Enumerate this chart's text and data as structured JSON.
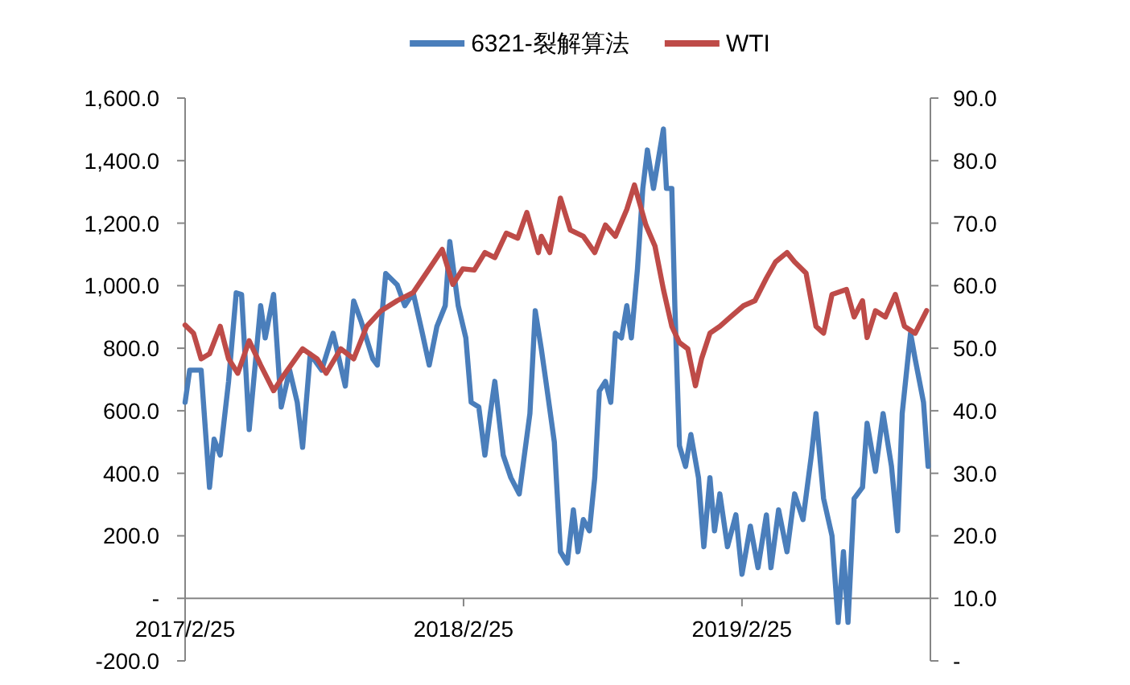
{
  "chart_data": {
    "type": "line",
    "legend": "top",
    "grid": false,
    "marker": "none",
    "line_style": "solid",
    "xlim": [
      "2017-02-25",
      "2019-10-30"
    ],
    "xticks": [
      {
        "value": "2017-02-25",
        "label": "2017/2/25"
      },
      {
        "value": "2018-02-25",
        "label": "2018/2/25"
      },
      {
        "value": "2019-02-25",
        "label": "2019/2/25"
      }
    ],
    "ylim": [
      -200,
      1600
    ],
    "yticks": [
      {
        "value": -200,
        "label": "-200.0"
      },
      {
        "value": 0,
        "label": "-"
      },
      {
        "value": 200,
        "label": "200.0"
      },
      {
        "value": 400,
        "label": "400.0"
      },
      {
        "value": 600,
        "label": "600.0"
      },
      {
        "value": 800,
        "label": "800.0"
      },
      {
        "value": 1000,
        "label": "1,000.0"
      },
      {
        "value": 1200,
        "label": "1,200.0"
      },
      {
        "value": 1400,
        "label": "1,400.0"
      },
      {
        "value": 1600,
        "label": "1,600.0"
      }
    ],
    "y2lim": [
      0,
      90
    ],
    "y2ticks": [
      {
        "value": 0,
        "label": "-"
      },
      {
        "value": 10,
        "label": "10.0"
      },
      {
        "value": 20,
        "label": "20.0"
      },
      {
        "value": 30,
        "label": "30.0"
      },
      {
        "value": 40,
        "label": "40.0"
      },
      {
        "value": 50,
        "label": "50.0"
      },
      {
        "value": 60,
        "label": "60.0"
      },
      {
        "value": 70,
        "label": "70.0"
      },
      {
        "value": 80,
        "label": "80.0"
      },
      {
        "value": 90,
        "label": "90.0"
      }
    ],
    "series": [
      {
        "name": "6321-裂解算法",
        "color": "#4a7ebb",
        "x": [
          "2017-02-25",
          "2017-03-03",
          "2017-03-18",
          "2017-03-29",
          "2017-04-04",
          "2017-04-12",
          "2017-04-23",
          "2017-05-03",
          "2017-05-10",
          "2017-05-20",
          "2017-06-04",
          "2017-06-10",
          "2017-06-21",
          "2017-07-01",
          "2017-07-12",
          "2017-07-22",
          "2017-07-29",
          "2017-08-08",
          "2017-08-23",
          "2017-09-07",
          "2017-09-23",
          "2017-10-04",
          "2017-10-14",
          "2017-10-29",
          "2017-11-04",
          "2017-11-15",
          "2017-11-30",
          "2017-12-10",
          "2017-12-21",
          "2018-01-02",
          "2018-01-11",
          "2018-01-21",
          "2018-02-01",
          "2018-02-07",
          "2018-02-18",
          "2018-02-28",
          "2018-03-07",
          "2018-03-17",
          "2018-03-25",
          "2018-04-01",
          "2018-04-07",
          "2018-04-18",
          "2018-04-28",
          "2018-05-09",
          "2018-05-23",
          "2018-05-30",
          "2018-06-07",
          "2018-06-13",
          "2018-06-24",
          "2018-07-02",
          "2018-07-11",
          "2018-07-19",
          "2018-07-25",
          "2018-08-01",
          "2018-08-09",
          "2018-08-16",
          "2018-08-22",
          "2018-08-30",
          "2018-09-06",
          "2018-09-12",
          "2018-09-20",
          "2018-09-27",
          "2018-10-03",
          "2018-10-11",
          "2018-10-18",
          "2018-10-24",
          "2018-11-01",
          "2018-11-08",
          "2018-11-14",
          "2018-11-18",
          "2018-11-25",
          "2018-11-29",
          "2018-12-05",
          "2018-12-13",
          "2018-12-20",
          "2018-12-30",
          "2019-01-06",
          "2019-01-14",
          "2019-01-20",
          "2019-01-27",
          "2019-02-06",
          "2019-02-17",
          "2019-02-25",
          "2019-03-08",
          "2019-03-18",
          "2019-03-29",
          "2019-04-04",
          "2019-04-14",
          "2019-04-25",
          "2019-05-05",
          "2019-05-16",
          "2019-05-27",
          "2019-06-02",
          "2019-06-12",
          "2019-06-23",
          "2019-07-01",
          "2019-07-08",
          "2019-07-14",
          "2019-07-22",
          "2019-08-02",
          "2019-08-08",
          "2019-08-19",
          "2019-08-29",
          "2019-09-09",
          "2019-09-17",
          "2019-09-23",
          "2019-10-04",
          "2019-10-10",
          "2019-10-21",
          "2019-10-27"
        ],
        "values": [
          627,
          730,
          730,
          355,
          509,
          458,
          694,
          977,
          972,
          540,
          936,
          833,
          972,
          612,
          730,
          627,
          483,
          781,
          730,
          848,
          679,
          951,
          884,
          766,
          746,
          1039,
          1003,
          936,
          977,
          848,
          746,
          869,
          936,
          1141,
          936,
          833,
          627,
          612,
          458,
          591,
          694,
          458,
          386,
          334,
          591,
          920,
          797,
          694,
          500,
          149,
          113,
          283,
          149,
          252,
          216,
          386,
          663,
          694,
          627,
          848,
          833,
          936,
          833,
          1054,
          1311,
          1434,
          1311,
          1414,
          1501,
          1311,
          1311,
          936,
          488,
          422,
          524,
          386,
          165,
          386,
          216,
          334,
          165,
          267,
          77,
          231,
          98,
          267,
          98,
          283,
          149,
          334,
          252,
          458,
          591,
          319,
          200,
          -77,
          149,
          -77,
          319,
          355,
          560,
          406,
          591,
          422,
          216,
          591,
          848,
          766,
          627,
          422
        ]
      },
      {
        "name": "WTI",
        "color": "#be4b48",
        "axis": "y2",
        "x": [
          "2017-02-25",
          "2017-03-08",
          "2017-03-18",
          "2017-03-29",
          "2017-04-12",
          "2017-04-23",
          "2017-05-05",
          "2017-05-20",
          "2017-06-04",
          "2017-06-21",
          "2017-07-05",
          "2017-07-29",
          "2017-08-17",
          "2017-08-29",
          "2017-09-17",
          "2017-10-04",
          "2017-10-21",
          "2017-11-09",
          "2017-11-30",
          "2017-12-21",
          "2018-01-11",
          "2018-01-28",
          "2018-02-11",
          "2018-02-24",
          "2018-03-11",
          "2018-03-25",
          "2018-04-07",
          "2018-04-22",
          "2018-05-07",
          "2018-05-19",
          "2018-06-03",
          "2018-06-07",
          "2018-06-18",
          "2018-07-02",
          "2018-07-15",
          "2018-08-01",
          "2018-08-16",
          "2018-08-30",
          "2018-09-12",
          "2018-09-27",
          "2018-10-07",
          "2018-10-22",
          "2018-11-03",
          "2018-11-14",
          "2018-11-25",
          "2018-12-05",
          "2018-12-16",
          "2018-12-26",
          "2019-01-03",
          "2019-01-14",
          "2019-01-27",
          "2019-02-10",
          "2019-02-27",
          "2019-03-14",
          "2019-03-29",
          "2019-04-10",
          "2019-04-25",
          "2019-05-05",
          "2019-05-20",
          "2019-06-02",
          "2019-06-12",
          "2019-06-23",
          "2019-07-12",
          "2019-07-22",
          "2019-08-02",
          "2019-08-08",
          "2019-08-19",
          "2019-09-01",
          "2019-09-14",
          "2019-09-26",
          "2019-10-10",
          "2019-10-25"
        ],
        "values": [
          53.7,
          52.4,
          48.3,
          49.1,
          53.5,
          48.3,
          46.0,
          51.2,
          47.3,
          43.2,
          45.8,
          49.9,
          48.3,
          46.0,
          49.9,
          48.3,
          53.5,
          56.0,
          57.6,
          58.9,
          62.7,
          65.8,
          60.2,
          62.7,
          62.5,
          65.3,
          64.5,
          68.4,
          67.6,
          71.7,
          65.3,
          67.9,
          65.3,
          74.0,
          68.9,
          67.9,
          65.3,
          69.7,
          67.9,
          72.2,
          76.1,
          69.7,
          66.3,
          59.4,
          53.5,
          50.9,
          49.9,
          44.0,
          48.3,
          52.4,
          53.5,
          55.0,
          56.8,
          57.6,
          61.2,
          63.8,
          65.3,
          63.8,
          62.0,
          53.5,
          52.4,
          58.6,
          59.4,
          55.0,
          57.6,
          51.7,
          56.0,
          55.0,
          58.6,
          53.5,
          52.4,
          56.0
        ]
      }
    ]
  }
}
